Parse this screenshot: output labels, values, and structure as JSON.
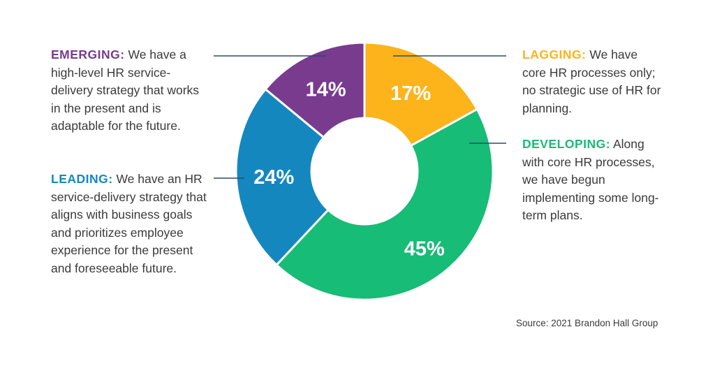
{
  "chart_data": {
    "type": "pie",
    "donut": true,
    "start": "top, clockwise",
    "slices": [
      {
        "label": "LAGGING:",
        "description": "We have core HR processes only; no strategic use of HR for planning.",
        "value": 17,
        "value_label": "17%",
        "color": "#FDB31A"
      },
      {
        "label": "DEVELOPING:",
        "description": "Along with core HR processes, we have begun implementing some long-term plans.",
        "value": 45,
        "value_label": "45%",
        "color": "#17BC76"
      },
      {
        "label": "LEADING:",
        "description": "We have an HR service-delivery strategy that aligns with business goals and prioritizes employee experience for the present and foreseeable future.",
        "value": 24,
        "value_label": "24%",
        "color": "#1587BF"
      },
      {
        "label": "EMERGING:",
        "description": "We have a high-level HR service-delivery strategy that works in the present and is adaptable for the future.",
        "value": 14,
        "value_label": "14%",
        "color": "#783B8E"
      }
    ],
    "source": "Source: 2021 Brandon Hall Group",
    "leader_color": "#2B4A6B"
  }
}
